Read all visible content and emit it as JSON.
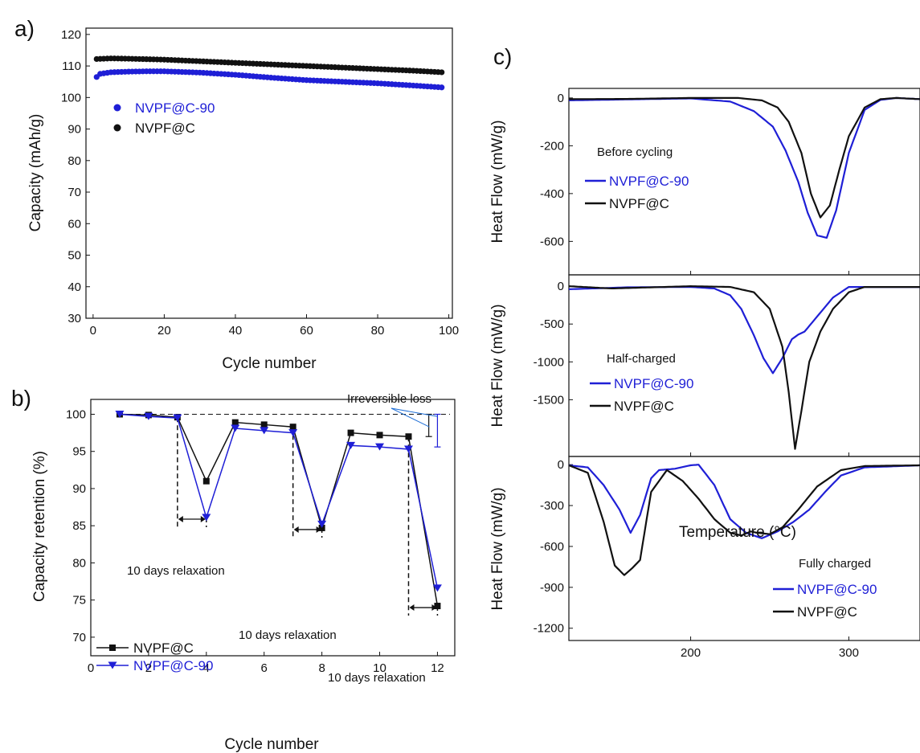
{
  "colors": {
    "nvpf_c": "#111111",
    "nvpf_c90": "#1f1fd6",
    "axis": "#111111"
  },
  "panel_labels": {
    "a": "a)",
    "b": "b)",
    "c": "c)"
  },
  "chart_data": [
    {
      "panel": "a",
      "type": "scatter",
      "xlabel": "Cycle number",
      "ylabel": "Capacity (mAh/g)",
      "xlim": [
        -2,
        101
      ],
      "ylim": [
        30,
        122
      ],
      "xticks": [
        0,
        20,
        40,
        60,
        80,
        100
      ],
      "yticks": [
        30,
        40,
        50,
        60,
        70,
        80,
        90,
        100,
        110,
        120
      ],
      "grid": false,
      "legend_position": "upper-left",
      "series": [
        {
          "name": "NVPF@C-90",
          "color_key": "nvpf_c90",
          "x": [
            1,
            2,
            5,
            10,
            15,
            20,
            30,
            40,
            50,
            60,
            70,
            80,
            90,
            98
          ],
          "y": [
            106.5,
            107.5,
            108.0,
            108.2,
            108.3,
            108.3,
            107.9,
            107.2,
            106.3,
            105.5,
            105.0,
            104.5,
            103.8,
            103.2
          ]
        },
        {
          "name": "NVPF@C",
          "color_key": "nvpf_c",
          "x": [
            1,
            5,
            10,
            20,
            30,
            40,
            50,
            60,
            70,
            80,
            90,
            98
          ],
          "y": [
            112.2,
            112.4,
            112.3,
            112.0,
            111.5,
            111.0,
            110.5,
            110.0,
            109.5,
            109.0,
            108.5,
            108.0
          ]
        }
      ]
    },
    {
      "panel": "b",
      "type": "line",
      "xlabel": "Cycle number",
      "ylabel": "Capacity retention (%)",
      "xlim": [
        0,
        12.6
      ],
      "ylim": [
        67.5,
        102
      ],
      "xticks": [
        0,
        2,
        4,
        6,
        8,
        10,
        12
      ],
      "yticks": [
        70,
        75,
        80,
        85,
        90,
        95,
        100
      ],
      "grid": false,
      "legend_position": "lower-left",
      "reference_line": 100,
      "series": [
        {
          "name": "NVPF@C",
          "color_key": "nvpf_c",
          "marker": "square",
          "x": [
            1,
            2,
            3,
            4,
            5,
            6,
            7,
            8,
            9,
            10,
            11,
            12
          ],
          "y": [
            100,
            99.9,
            99.6,
            91.0,
            98.9,
            98.6,
            98.3,
            84.7,
            97.5,
            97.2,
            97.0,
            74.2
          ]
        },
        {
          "name": "NVPF@C-90",
          "color_key": "nvpf_c90",
          "marker": "triangle-down",
          "x": [
            1,
            2,
            3,
            4,
            5,
            6,
            7,
            8,
            9,
            10,
            11,
            12
          ],
          "y": [
            100,
            99.7,
            99.5,
            86.1,
            98.1,
            97.8,
            97.5,
            85.2,
            95.8,
            95.6,
            95.3,
            76.6
          ]
        }
      ],
      "annotations": [
        {
          "text": "10 days relaxation",
          "x_from": 3,
          "x_to": 4
        },
        {
          "text": "10 days relaxation",
          "x_from": 7,
          "x_to": 8
        },
        {
          "text": "10 days relaxation",
          "x_from": 11,
          "x_to": 12
        },
        {
          "text": "Irreversible loss"
        }
      ]
    },
    {
      "panel": "c",
      "type": "line",
      "xlabel": "Temperature (°C)",
      "ylabel": "Heat Flow (mW/g)",
      "xlim": [
        123,
        345
      ],
      "xticks": [
        200,
        300
      ],
      "shared_x": true,
      "subplots": [
        {
          "annotation": "Before cycling",
          "ylim": [
            -740,
            40
          ],
          "yticks": [
            0,
            -200,
            -400,
            -600
          ],
          "legend_position": "left",
          "series": [
            {
              "name": "NVPF@C-90",
              "color_key": "nvpf_c90",
              "x": [
                123,
                160,
                200,
                225,
                240,
                252,
                260,
                268,
                274,
                280,
                286,
                292,
                300,
                310,
                320,
                330,
                345
              ],
              "y": [
                -10,
                -6,
                -2,
                -15,
                -55,
                -120,
                -220,
                -350,
                -480,
                -575,
                -585,
                -470,
                -230,
                -50,
                -8,
                0,
                -5
              ]
            },
            {
              "name": "NVPF@C",
              "color_key": "nvpf_c",
              "x": [
                123,
                160,
                200,
                230,
                245,
                255,
                262,
                270,
                276,
                282,
                288,
                294,
                300,
                310,
                320,
                330,
                345
              ],
              "y": [
                -5,
                -4,
                0,
                0,
                -10,
                -40,
                -100,
                -230,
                -400,
                -500,
                -450,
                -300,
                -160,
                -40,
                -5,
                0,
                -5
              ]
            }
          ]
        },
        {
          "annotation": "Half-charged",
          "ylim": [
            -2250,
            150
          ],
          "yticks": [
            0,
            -500,
            -1000,
            -1500
          ],
          "legend_position": "left",
          "series": [
            {
              "name": "NVPF@C-90",
              "color_key": "nvpf_c90",
              "x": [
                123,
                160,
                200,
                215,
                225,
                232,
                240,
                246,
                252,
                258,
                264,
                268,
                272,
                280,
                290,
                300,
                345
              ],
              "y": [
                -40,
                -15,
                -10,
                -30,
                -120,
                -300,
                -650,
                -950,
                -1150,
                -950,
                -700,
                -640,
                -600,
                -400,
                -150,
                -10,
                -10
              ]
            },
            {
              "name": "NVPF@C",
              "color_key": "nvpf_c",
              "x": [
                123,
                150,
                200,
                225,
                240,
                250,
                258,
                262,
                266,
                270,
                275,
                282,
                290,
                300,
                310,
                345
              ],
              "y": [
                0,
                -30,
                0,
                -10,
                -80,
                -300,
                -800,
                -1400,
                -2150,
                -1650,
                -1000,
                -600,
                -300,
                -80,
                -10,
                -10
              ]
            }
          ]
        },
        {
          "annotation": "Fully charged",
          "ylim": [
            -1290,
            60
          ],
          "yticks": [
            0,
            -300,
            -600,
            -900,
            -1200
          ],
          "legend_position": "right",
          "series": [
            {
              "name": "NVPF@C-90",
              "color_key": "nvpf_c90",
              "x": [
                123,
                135,
                145,
                155,
                162,
                168,
                175,
                180,
                190,
                200,
                205,
                215,
                225,
                235,
                245,
                255,
                265,
                275,
                285,
                295,
                310,
                345
              ],
              "y": [
                -5,
                -20,
                -150,
                -330,
                -500,
                -370,
                -100,
                -40,
                -30,
                -5,
                0,
                -150,
                -400,
                -500,
                -540,
                -490,
                -420,
                -330,
                -200,
                -80,
                -20,
                -5
              ]
            },
            {
              "name": "NVPF@C",
              "color_key": "nvpf_c",
              "x": [
                123,
                135,
                145,
                152,
                158,
                163,
                168,
                175,
                185,
                195,
                205,
                215,
                225,
                232,
                238,
                242,
                250,
                258,
                268,
                280,
                295,
                310,
                345
              ],
              "y": [
                -5,
                -60,
                -420,
                -740,
                -810,
                -760,
                -700,
                -200,
                -40,
                -120,
                -250,
                -400,
                -500,
                -520,
                -490,
                -500,
                -510,
                -460,
                -330,
                -160,
                -40,
                -10,
                -5
              ]
            }
          ]
        }
      ]
    }
  ]
}
